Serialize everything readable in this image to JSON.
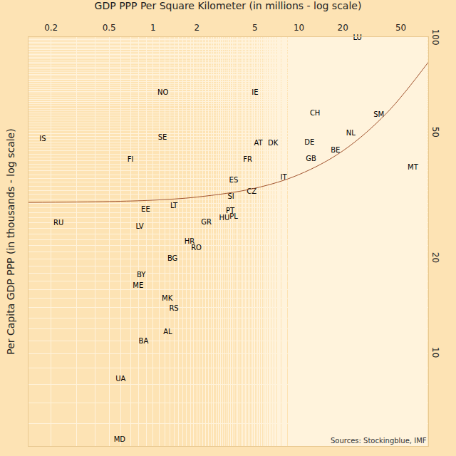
{
  "chart_data": {
    "type": "scatter",
    "title": "GDP PPP Per Square Kilometer (in millions - log scale)",
    "ylabel": "Per Capita GDP PPP (in thousands - log scale)",
    "annotations": [
      "Sources: Stockingblue, IMF"
    ],
    "log": true,
    "grid": true,
    "xlim": [
      0.14,
      77
    ],
    "xticks": [
      0.2,
      0.5,
      1,
      2,
      5,
      10,
      20,
      50
    ],
    "ylim": [
      5.1,
      101
    ],
    "yticks": [
      10,
      20,
      50,
      100
    ],
    "series": [
      {
        "type": "text",
        "color": "#000000",
        "labels": [
          "IS",
          "RU",
          "NO",
          "SE",
          "FI",
          "EE",
          "LV",
          "LT",
          "IE",
          "CH",
          "SM",
          "LU",
          "NL",
          "AT",
          "DK",
          "DE",
          "BE",
          "FR",
          "GB",
          "MT",
          "IT",
          "ES",
          "CZ",
          "SI",
          "PT",
          "PL",
          "HU",
          "GR",
          "HR",
          "RO",
          "BG",
          "BY",
          "ME",
          "MK",
          "RS",
          "AL",
          "BA",
          "UA",
          "MD"
        ],
        "x": [
          0.175,
          0.225,
          1.17,
          1.16,
          0.7,
          0.89,
          0.81,
          1.39,
          5.0,
          12.9,
          35.3,
          25.2,
          22.7,
          5.27,
          6.64,
          11.8,
          17.8,
          4.45,
          12.1,
          60.4,
          7.85,
          3.57,
          4.74,
          3.42,
          3.38,
          3.57,
          3.08,
          2.32,
          1.78,
          1.98,
          1.36,
          0.83,
          0.79,
          1.25,
          1.39,
          1.26,
          0.86,
          0.6,
          0.59
        ],
        "values": [
          47.8,
          25.9,
          67.0,
          48.3,
          41.2,
          28.6,
          25.2,
          29.3,
          67.0,
          57.7,
          57.1,
          100,
          49.8,
          46.4,
          46.4,
          46.7,
          44.0,
          41.2,
          41.4,
          38.8,
          36.1,
          35.5,
          32.5,
          31.4,
          28.3,
          27.2,
          26.9,
          26.1,
          22.6,
          21.6,
          20.0,
          17.7,
          16.4,
          14.9,
          13.9,
          11.7,
          10.9,
          8.28,
          5.33
        ]
      },
      {
        "type": "line",
        "color": "#a0522d",
        "line_style": "solid",
        "x": [
          0.14,
          0.5,
          1,
          2,
          5,
          10,
          20,
          40,
          77
        ],
        "values": [
          30.2,
          30.4,
          30.7,
          31.4,
          33.5,
          37.0,
          44.0,
          58.0,
          84.0
        ]
      }
    ]
  }
}
